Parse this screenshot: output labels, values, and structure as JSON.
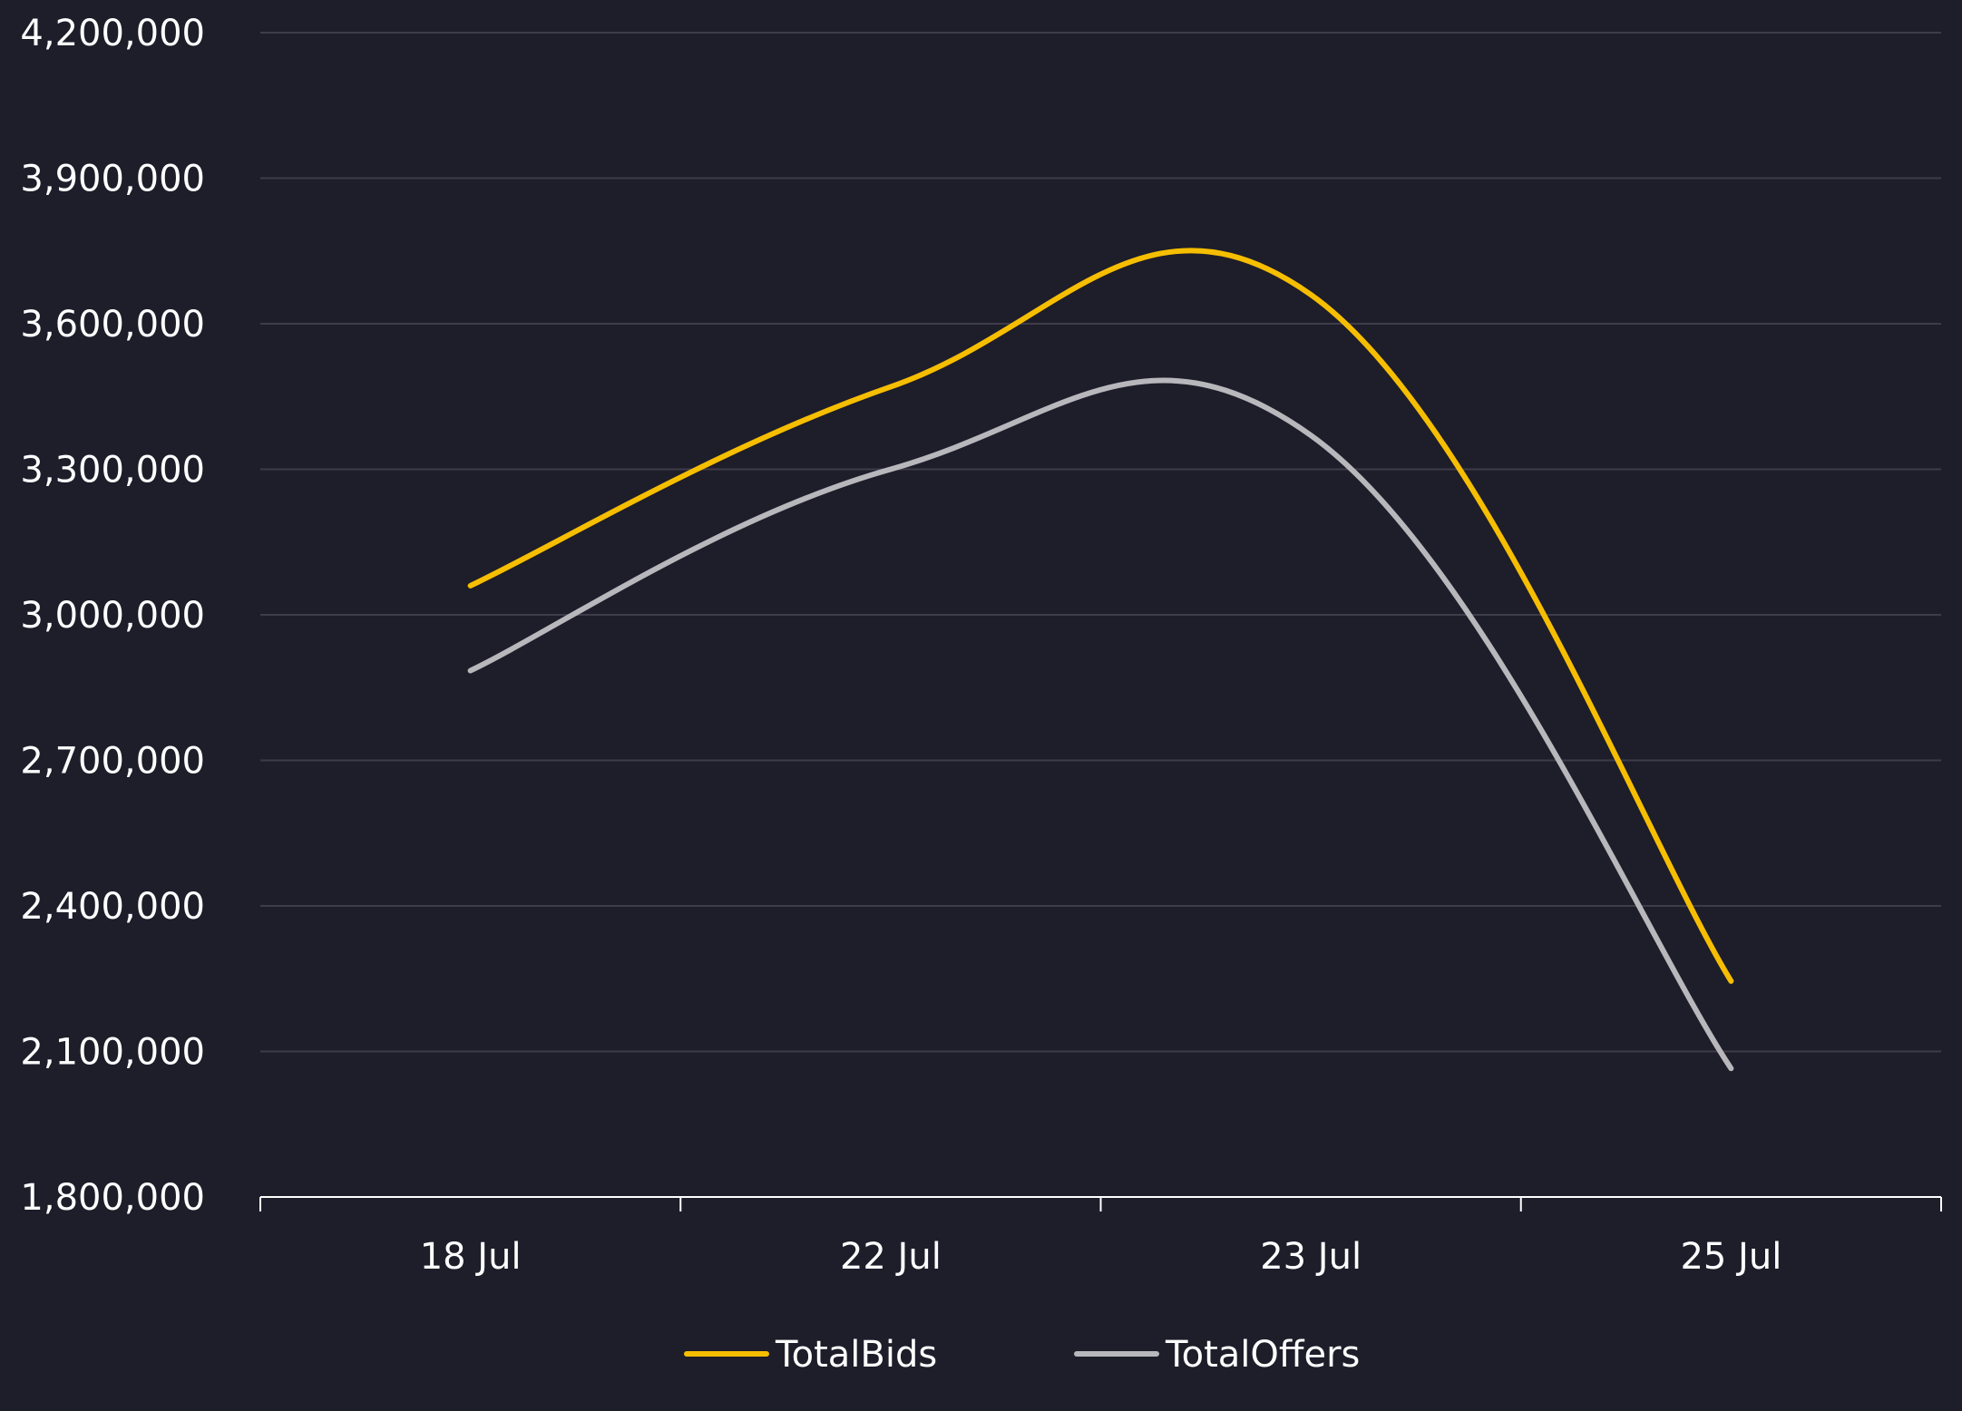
{
  "chart_data": {
    "type": "line",
    "categories": [
      "18 Jul",
      "22 Jul",
      "23 Jul",
      "25 Jul"
    ],
    "y_ticks": [
      "4,200,000",
      "3,900,000",
      "3,600,000",
      "3,300,000",
      "3,000,000",
      "2,700,000",
      "2,400,000",
      "2,100,000",
      "1,800,000"
    ],
    "ylim": [
      1800000,
      4200000
    ],
    "grid": true,
    "legend_position": "bottom",
    "background_color": "#1e1d2a",
    "grid_color": "#3d3c48",
    "axis_color": "#ffffff",
    "series": [
      {
        "name": "TotalBids",
        "color": "#f6be00",
        "values": [
          3060000,
          3470000,
          3660000,
          2245000
        ]
      },
      {
        "name": "TotalOffers",
        "color": "#b8b7bc",
        "values": [
          2885000,
          3300000,
          3370000,
          2065000
        ]
      }
    ]
  }
}
